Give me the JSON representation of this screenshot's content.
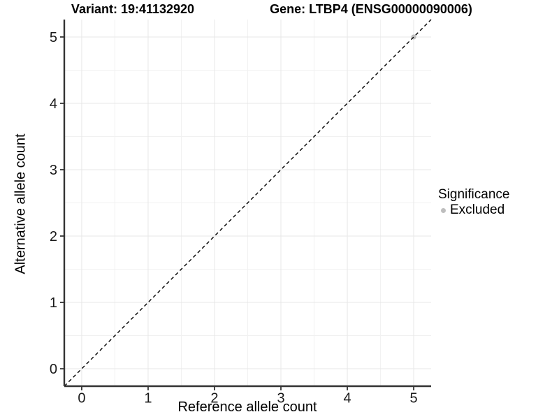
{
  "chart_data": {
    "type": "scatter",
    "titles": {
      "variant": "Variant: 19:41132920",
      "gene": "Gene: LTBP4 (ENSG00000090006)"
    },
    "xlabel": "Reference allele count",
    "ylabel": "Alternative allele count",
    "xlim": [
      -0.2625,
      5.2625
    ],
    "ylim": [
      -0.2625,
      5.2625
    ],
    "xticks": [
      0,
      1,
      2,
      3,
      4,
      5
    ],
    "yticks": [
      0,
      1,
      2,
      3,
      4,
      5
    ],
    "grid": {
      "major_step": 1,
      "minor_step": 0.5,
      "major_color": "#e7e7e7",
      "minor_color": "#f1f1f1"
    },
    "axis_color": "#333333",
    "identity_line": {
      "style": "dashed",
      "color": "#000000",
      "x_from": -0.2625,
      "y_from": -0.2625,
      "x_to": 5.2625,
      "y_to": 5.2625
    },
    "points": [
      {
        "x": 5,
        "y": 5,
        "significance": "Excluded",
        "color": "#bebebe"
      }
    ],
    "legend": {
      "position": "right",
      "title": "Significance",
      "items": [
        {
          "label": "Excluded",
          "color": "#bebebe"
        }
      ]
    }
  }
}
